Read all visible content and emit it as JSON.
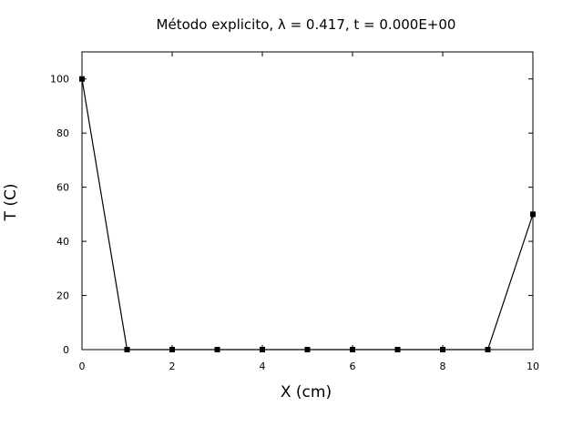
{
  "chart_data": {
    "type": "line",
    "title": "Método explicito, λ  = 0.417, t = 0.000E+00",
    "xlabel": "X (cm)",
    "ylabel": "T (C)",
    "xlim": [
      0,
      10
    ],
    "ylim": [
      0,
      110
    ],
    "xticks": [
      0,
      2,
      4,
      6,
      8,
      10
    ],
    "yticks": [
      0,
      20,
      40,
      60,
      80,
      100
    ],
    "grid": false,
    "series": [
      {
        "color": "#000000",
        "marker": "square",
        "x": [
          0,
          1,
          2,
          3,
          4,
          5,
          6,
          7,
          8,
          9,
          10
        ],
        "y": [
          100,
          0,
          0,
          0,
          0,
          0,
          0,
          0,
          0,
          0,
          50
        ]
      }
    ]
  }
}
